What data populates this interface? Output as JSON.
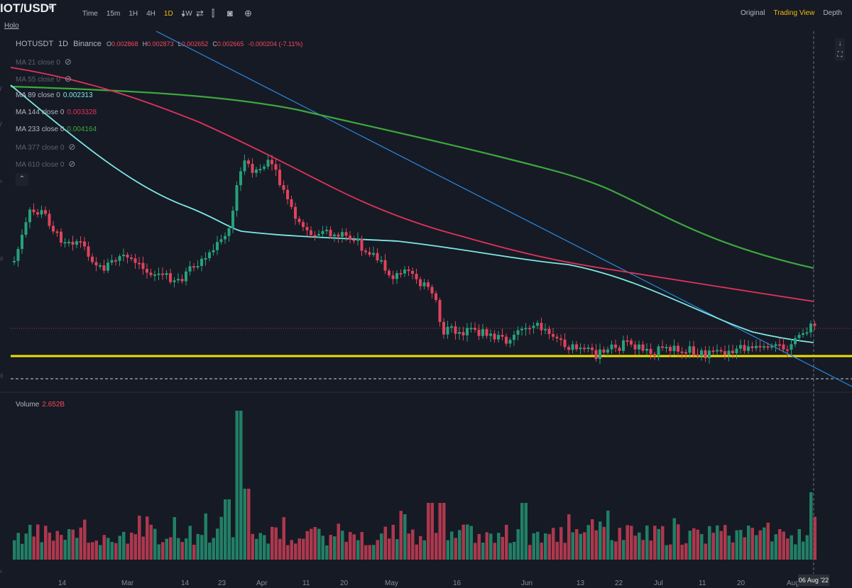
{
  "header": {
    "pair": "HOT/USDT",
    "pair_visible": "IOT/USDT",
    "sublabel": "Holo",
    "intervals": [
      {
        "label": "Time",
        "active": false
      },
      {
        "label": "15m",
        "active": false
      },
      {
        "label": "1H",
        "active": false
      },
      {
        "label": "4H",
        "active": false
      },
      {
        "label": "1D",
        "active": true
      },
      {
        "label": "1W",
        "active": false
      }
    ],
    "view_tabs": [
      {
        "label": "Original",
        "active": false
      },
      {
        "label": "Trading View",
        "active": true
      },
      {
        "label": "Depth",
        "active": false
      }
    ]
  },
  "legend": {
    "symbol": "HOTUSDT",
    "interval": "1D",
    "exchange": "Binance",
    "open_label": "O",
    "open": "0.002868",
    "high_label": "H",
    "high": "0.002873",
    "low_label": "L",
    "low": "0.002652",
    "close_label": "C",
    "close": "0.002665",
    "change": "-0.000204 (-7.11%)",
    "mas": [
      {
        "name": "MA 21 close 0",
        "value": "",
        "color": "#5d6169",
        "hidden": true
      },
      {
        "name": "MA 55 close 0",
        "value": "",
        "color": "#5d6169",
        "hidden": true
      },
      {
        "name": "MA 89 close 0",
        "value": "0.002313",
        "color": "#7de8e3",
        "hidden": false
      },
      {
        "name": "MA 144 close 0",
        "value": "0.003328",
        "color": "#e0335b",
        "hidden": false
      },
      {
        "name": "MA 233 close 0",
        "value": "0.004164",
        "color": "#3ca83c",
        "hidden": false
      },
      {
        "name": "MA 377 close 0",
        "value": "",
        "color": "#5d6169",
        "hidden": true
      },
      {
        "name": "MA 610 close 0",
        "value": "",
        "color": "#5d6169",
        "hidden": true
      }
    ]
  },
  "volume": {
    "label": "Volume",
    "value": "2.652B"
  },
  "x_axis": {
    "labels": [
      "14",
      "Mar",
      "14",
      "23",
      "Apr",
      "11",
      "20",
      "May",
      "16",
      "Jun",
      "13",
      "22",
      "Jul",
      "11",
      "20",
      "Aug"
    ],
    "crosshair_date": "06 Aug '22"
  },
  "colors": {
    "up": "#26a17b",
    "down": "#e0435b",
    "support": "#f0e000",
    "trendline": "#2a8ae0",
    "accent": "#f0b90b"
  },
  "icons": [
    "indicators-icon",
    "candles-icon",
    "camera-icon",
    "add-icon",
    "scroll-down-icon",
    "fullscreen-icon",
    "visibility-icon"
  ]
}
